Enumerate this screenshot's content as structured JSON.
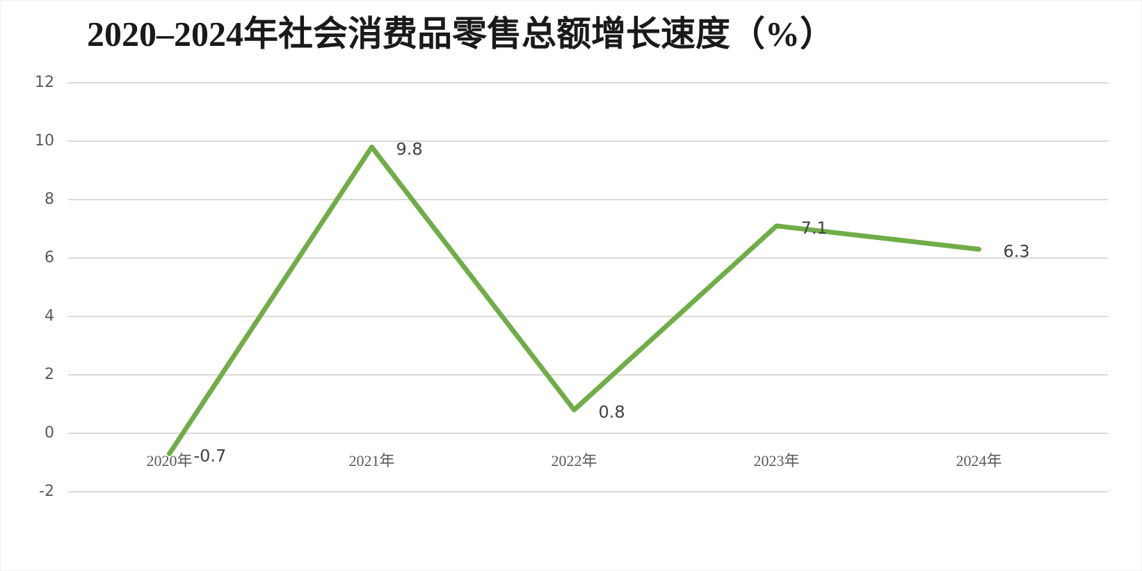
{
  "chart_data": {
    "type": "line",
    "title": "2020–2024年社会消费品零售总额增长速度（%）",
    "categories": [
      "2020年",
      "2021年",
      "2022年",
      "2023年",
      "2024年"
    ],
    "series": [
      {
        "name": "增长速度",
        "color": "#70ad47",
        "values": [
          -0.7,
          9.8,
          0.8,
          7.1,
          6.3
        ]
      }
    ],
    "ylim": [
      -2,
      12
    ],
    "yticks": [
      -2,
      0,
      2,
      4,
      6,
      8,
      10,
      12
    ],
    "grid": true,
    "data_labels": true
  }
}
